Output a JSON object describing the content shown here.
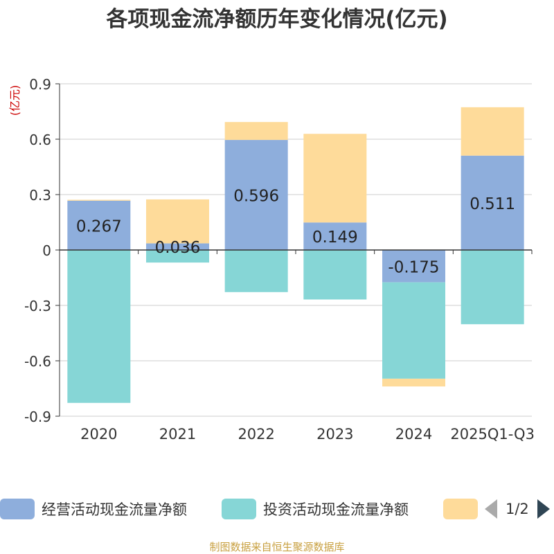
{
  "title": "各项现金流净额历年变化情况(亿元)",
  "unit_label": "(亿元)",
  "source": "制图数据来自恒生聚源数据库",
  "pager": {
    "text": "1/2",
    "prev_icon": "triangle-left-icon",
    "next_icon": "triangle-right-icon"
  },
  "colors": {
    "operating": "#8eaedc",
    "investing": "#86d6d6",
    "financing": "#fedb9a",
    "unit": "#cc0000",
    "source": "#c8a040"
  },
  "chart_data": {
    "type": "bar",
    "stacked": true,
    "categories": [
      "2020",
      "2021",
      "2022",
      "2023",
      "2024",
      "2025Q1-Q3"
    ],
    "ylim": [
      -0.9,
      0.9
    ],
    "yticks": [
      -0.9,
      -0.6,
      -0.3,
      0,
      0.3,
      0.6,
      0.9
    ],
    "ytick_labels": [
      "-0.9",
      "-0.6",
      "-0.3",
      "0",
      "0.3",
      "0.6",
      "0.9"
    ],
    "ylabel": "(亿元)",
    "grid": true,
    "legend_position": "bottom",
    "series": [
      {
        "name": "经营活动现金流量净额",
        "values": [
          0.267,
          0.036,
          0.596,
          0.149,
          -0.175,
          0.511
        ],
        "labels": [
          "0.267",
          "0.036",
          "0.596",
          "0.149",
          "-0.175",
          "0.511"
        ]
      },
      {
        "name": "投资活动现金流量净额",
        "values": [
          -0.828,
          -0.068,
          -0.228,
          -0.268,
          -0.522,
          -0.402
        ]
      },
      {
        "name": "",
        "values": [
          0.005,
          0.238,
          0.097,
          0.48,
          -0.042,
          0.262
        ]
      }
    ]
  }
}
